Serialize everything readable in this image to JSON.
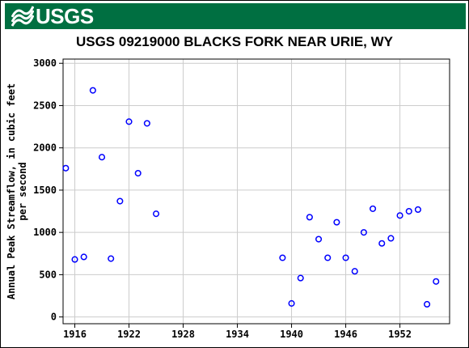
{
  "banner": {
    "logo_text": "USGS",
    "logo_icon": "usgs-wave-icon",
    "color": "#006f41"
  },
  "chart_data": {
    "type": "scatter",
    "title": "USGS 09219000 BLACKS FORK NEAR URIE, WY",
    "ylabel_lines": [
      "Annual Peak Streamflow, in cubic feet",
      "per second"
    ],
    "xlabel": "",
    "xlim": [
      1914.7,
      1957.5
    ],
    "ylim": [
      -80,
      3050
    ],
    "xticks": [
      1916,
      1922,
      1928,
      1934,
      1940,
      1946,
      1952
    ],
    "yticks": [
      0,
      500,
      1000,
      1500,
      2000,
      2500,
      3000
    ],
    "grid": true,
    "marker_color": "#0000ff",
    "points": [
      {
        "x": 1915,
        "y": 1760
      },
      {
        "x": 1916,
        "y": 680
      },
      {
        "x": 1917,
        "y": 710
      },
      {
        "x": 1918,
        "y": 2680
      },
      {
        "x": 1919,
        "y": 1890
      },
      {
        "x": 1920,
        "y": 690
      },
      {
        "x": 1921,
        "y": 1370
      },
      {
        "x": 1922,
        "y": 2310
      },
      {
        "x": 1923,
        "y": 1700
      },
      {
        "x": 1924,
        "y": 2290
      },
      {
        "x": 1925,
        "y": 1220
      },
      {
        "x": 1939,
        "y": 700
      },
      {
        "x": 1940,
        "y": 160
      },
      {
        "x": 1941,
        "y": 460
      },
      {
        "x": 1942,
        "y": 1180
      },
      {
        "x": 1943,
        "y": 920
      },
      {
        "x": 1944,
        "y": 700
      },
      {
        "x": 1945,
        "y": 1120
      },
      {
        "x": 1946,
        "y": 700
      },
      {
        "x": 1947,
        "y": 540
      },
      {
        "x": 1948,
        "y": 1000
      },
      {
        "x": 1949,
        "y": 1280
      },
      {
        "x": 1950,
        "y": 870
      },
      {
        "x": 1951,
        "y": 930
      },
      {
        "x": 1952,
        "y": 1200
      },
      {
        "x": 1953,
        "y": 1250
      },
      {
        "x": 1954,
        "y": 1270
      },
      {
        "x": 1955,
        "y": 150
      },
      {
        "x": 1956,
        "y": 420
      }
    ]
  }
}
